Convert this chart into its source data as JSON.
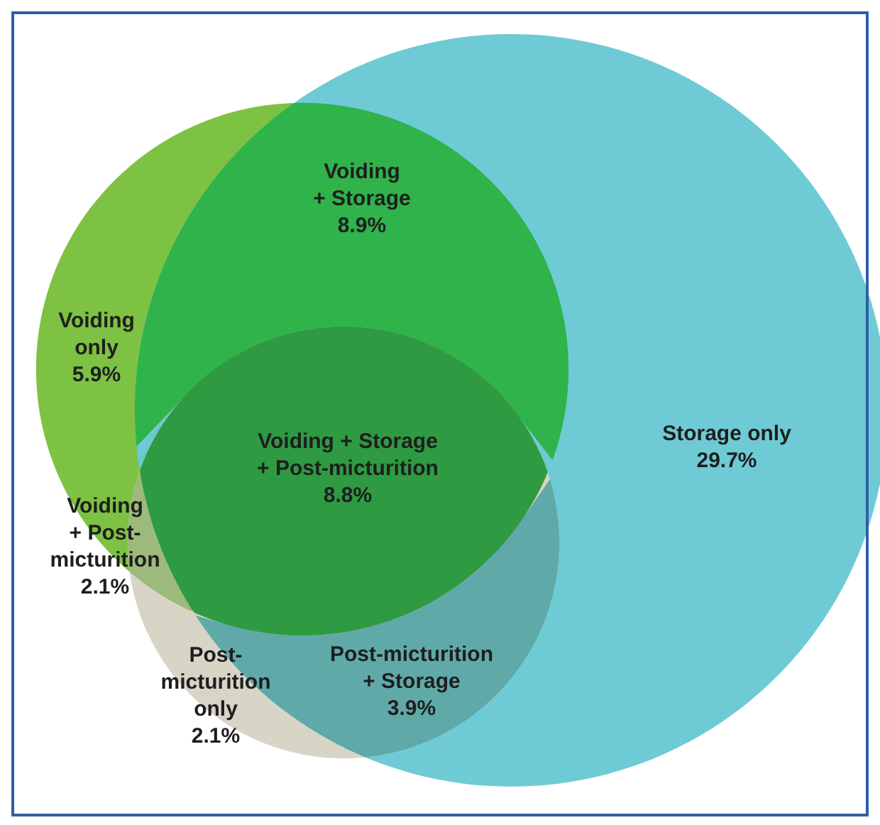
{
  "chart_data": {
    "type": "other",
    "categories": [
      "Voiding\nonly",
      "Storage only",
      "Post-\nmicturition\nonly",
      "Voiding\n+ Storage",
      "Voiding\n+ Post-\nmicturition",
      "Post-micturition\n+ Storage",
      "Voiding + Storage\n+ Post-micturition"
    ],
    "values": [
      5.9,
      29.7,
      2.1,
      8.9,
      2.1,
      3.9,
      8.8
    ],
    "value_labels": [
      "5.9%",
      "29.7%",
      "2.1%",
      "8.9%",
      "2.1%",
      "3.9%",
      "8.8%"
    ],
    "colors": [
      "#7dc242",
      "#6ecbd5",
      "#d8d5c6",
      "#2fb34a",
      "#9dba7c",
      "#5faaa9",
      "#2e9a42"
    ]
  }
}
